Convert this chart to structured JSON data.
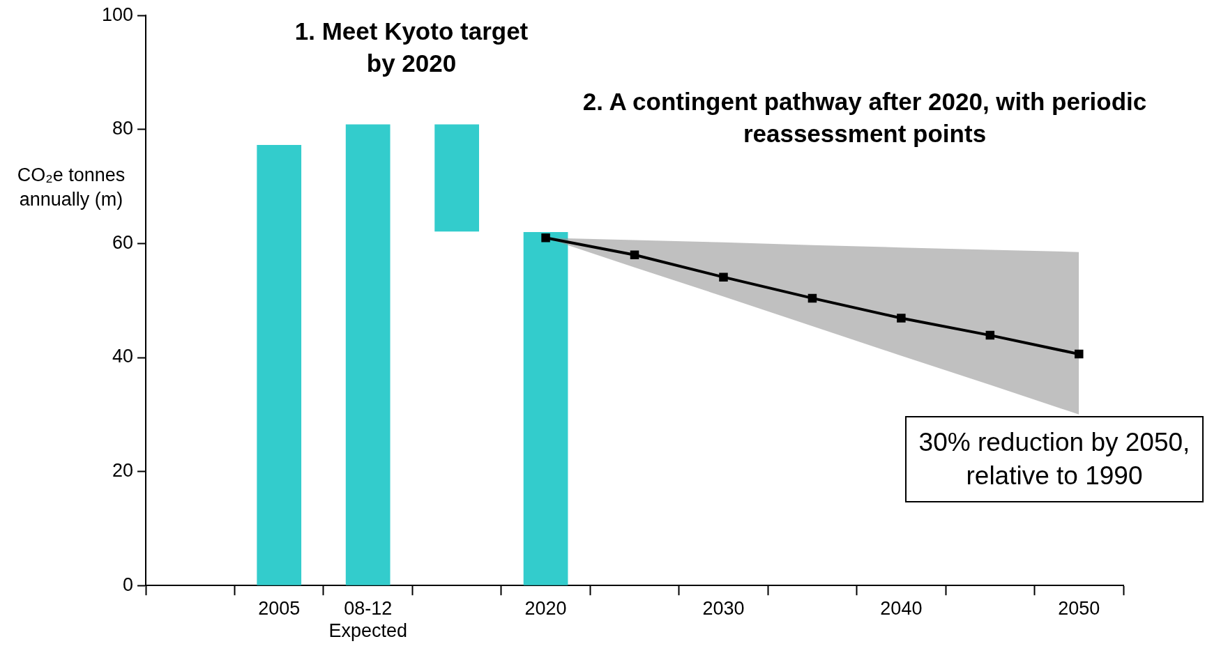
{
  "chart_data": {
    "type": "bar",
    "ylabel": "CO₂e tonnes annually (m)",
    "categories": [
      null,
      "2005",
      "08-12\nExpected",
      null,
      "2020",
      null,
      "2030",
      null,
      "2040",
      null,
      "2050"
    ],
    "series": [
      {
        "color": "#33cccc",
        "values": [
          null,
          77.3,
          80.9,
          18.8,
          62.0,
          null,
          null,
          null,
          null,
          null,
          null
        ],
        "base": [
          null,
          0,
          0,
          62.1,
          0,
          null,
          null,
          null,
          null,
          null,
          null
        ]
      },
      {
        "type": "line",
        "color": "#000000",
        "marker": "square",
        "values": [
          null,
          null,
          null,
          null,
          61.0,
          58.0,
          54.1,
          50.4,
          46.9,
          43.9,
          40.6
        ],
        "lower": [
          null,
          null,
          null,
          null,
          61.0,
          55.8,
          50.7,
          45.5,
          40.3,
          35.2,
          30.0
        ],
        "upper": [
          null,
          null,
          null,
          null,
          61.0,
          60.6,
          60.2,
          59.7,
          59.3,
          58.9,
          58.5
        ]
      }
    ],
    "ylim": [
      0,
      100
    ],
    "yticks": [
      0,
      20,
      40,
      60,
      80,
      100
    ],
    "grid": false,
    "legend": false,
    "annotations": [
      "1. Meet Kyoto target by 2020",
      "2. A contingent pathway after 2020, with periodic reassessment points",
      "30% reduction by 2050, relative to 1990"
    ]
  }
}
